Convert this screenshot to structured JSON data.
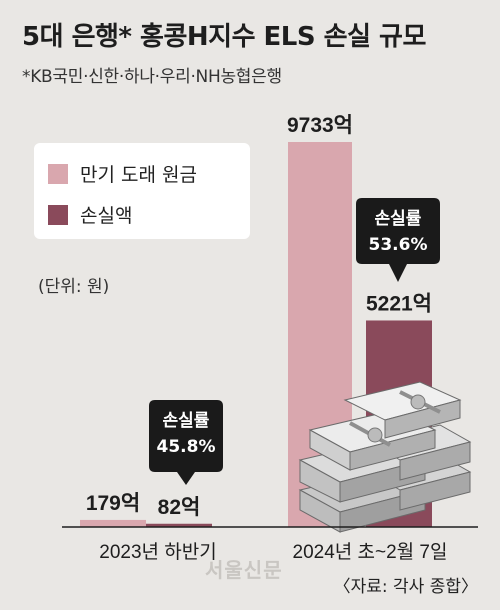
{
  "title": "5대 은행* 홍콩H지수 ELS 손실 규모",
  "subtitle": "*KB국민·신한·하나·우리·NH농협은행",
  "unit": "(단위: 원)",
  "credit": "〈자료: 각사 종합〉",
  "watermark": "서울신문",
  "legend": [
    {
      "label": "만기 도래 원금",
      "color": "#d9a7ae"
    },
    {
      "label": "손실액",
      "color": "#8a4a5b"
    }
  ],
  "chart_data": {
    "type": "bar",
    "categories": [
      "2023년 하반기",
      "2024년 초~2월 7일"
    ],
    "series": [
      {
        "name": "만기 도래 원금",
        "values": [
          179,
          9733
        ],
        "labels": [
          "179억",
          "9733억"
        ],
        "color": "#d9a7ae"
      },
      {
        "name": "손실액",
        "values": [
          82,
          5221
        ],
        "labels": [
          "82억",
          "5221억"
        ],
        "color": "#8a4a5b"
      }
    ],
    "annotations": [
      {
        "category": "2023년 하반기",
        "series": "손실액",
        "label": "손실률",
        "value": "45.8%"
      },
      {
        "category": "2024년 초~2월 7일",
        "series": "손실액",
        "label": "손실률",
        "value": "53.6%"
      }
    ],
    "title": "5대 은행* 홍콩H지수 ELS 손실 규모",
    "ylabel": "원",
    "ylim": [
      0,
      9733
    ]
  }
}
